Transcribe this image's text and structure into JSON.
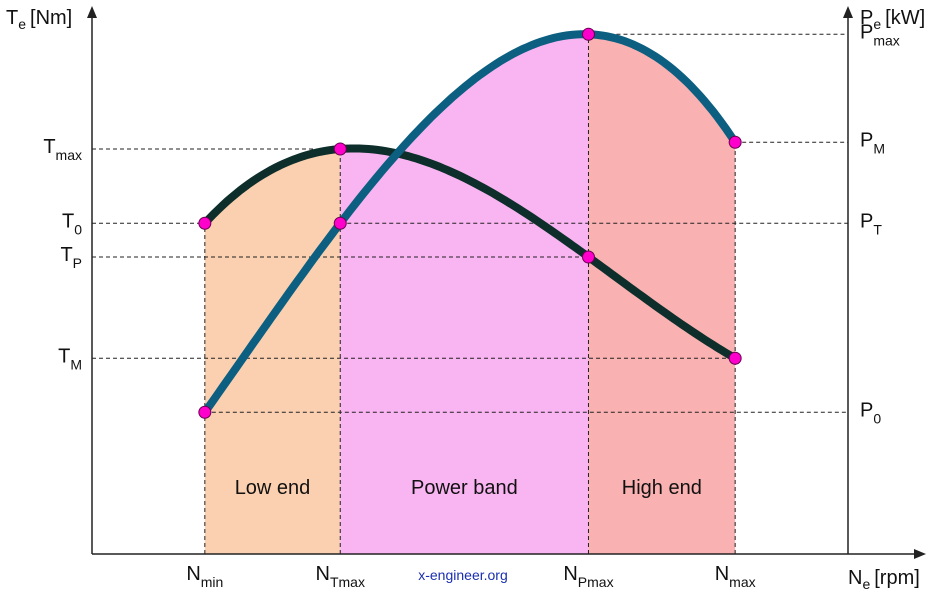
{
  "chart_data": {
    "type": "line",
    "title": "",
    "xlabel": "N",
    "xlabel_sub": "e",
    "xlabel_unit": "[rpm]",
    "ylabel_left": "T",
    "ylabel_left_sub": "e",
    "ylabel_left_unit": "[Nm]",
    "ylabel_right": "P",
    "ylabel_right_sub": "e",
    "ylabel_right_unit": "[kW]",
    "x": [
      1.0,
      1.6,
      2.7,
      3.35
    ],
    "x_ticks": [
      {
        "main": "N",
        "sub": "min",
        "x": 1.0
      },
      {
        "main": "N",
        "sub": "Tmax",
        "x": 1.6
      },
      {
        "main": "N",
        "sub": "Pmax",
        "x": 2.7
      },
      {
        "main": "N",
        "sub": "max",
        "x": 3.35
      }
    ],
    "xlim": [
      0.5,
      3.85
    ],
    "torque_ylim": [
      0,
      4.0
    ],
    "power_ylim": [
      0,
      4.0
    ],
    "torque_ticks": [
      {
        "main": "T",
        "sub": "max",
        "y": 3.0
      },
      {
        "main": "T",
        "sub": "0",
        "y": 2.45
      },
      {
        "main": "T",
        "sub": "P",
        "y": 2.2
      },
      {
        "main": "T",
        "sub": "M",
        "y": 1.45
      }
    ],
    "power_ticks": [
      {
        "main": "P",
        "sub": "max",
        "y": 3.85
      },
      {
        "main": "P",
        "sub": "M",
        "y": 3.05
      },
      {
        "main": "P",
        "sub": "T",
        "y": 2.45
      },
      {
        "main": "P",
        "sub": "0",
        "y": 1.05
      }
    ],
    "series": [
      {
        "values": [
          2.45,
          3.0,
          2.2,
          1.45
        ],
        "color": "#0d2e2a"
      },
      {
        "values": [
          1.05,
          2.45,
          3.85,
          3.05
        ],
        "color": "#0c5f80"
      }
    ],
    "regions": [
      {
        "label": "Low end",
        "from": 1.0,
        "to": 1.6,
        "color": "#fbd0b0"
      },
      {
        "label": "Power band",
        "from": 1.6,
        "to": 2.7,
        "color": "#f9b4f2"
      },
      {
        "label": "High end",
        "from": 2.7,
        "to": 3.35,
        "color": "#f9b1b1"
      }
    ],
    "marker_color": "#ff00cc",
    "credit": "x-engineer.org",
    "grid": false,
    "legend": "none"
  }
}
